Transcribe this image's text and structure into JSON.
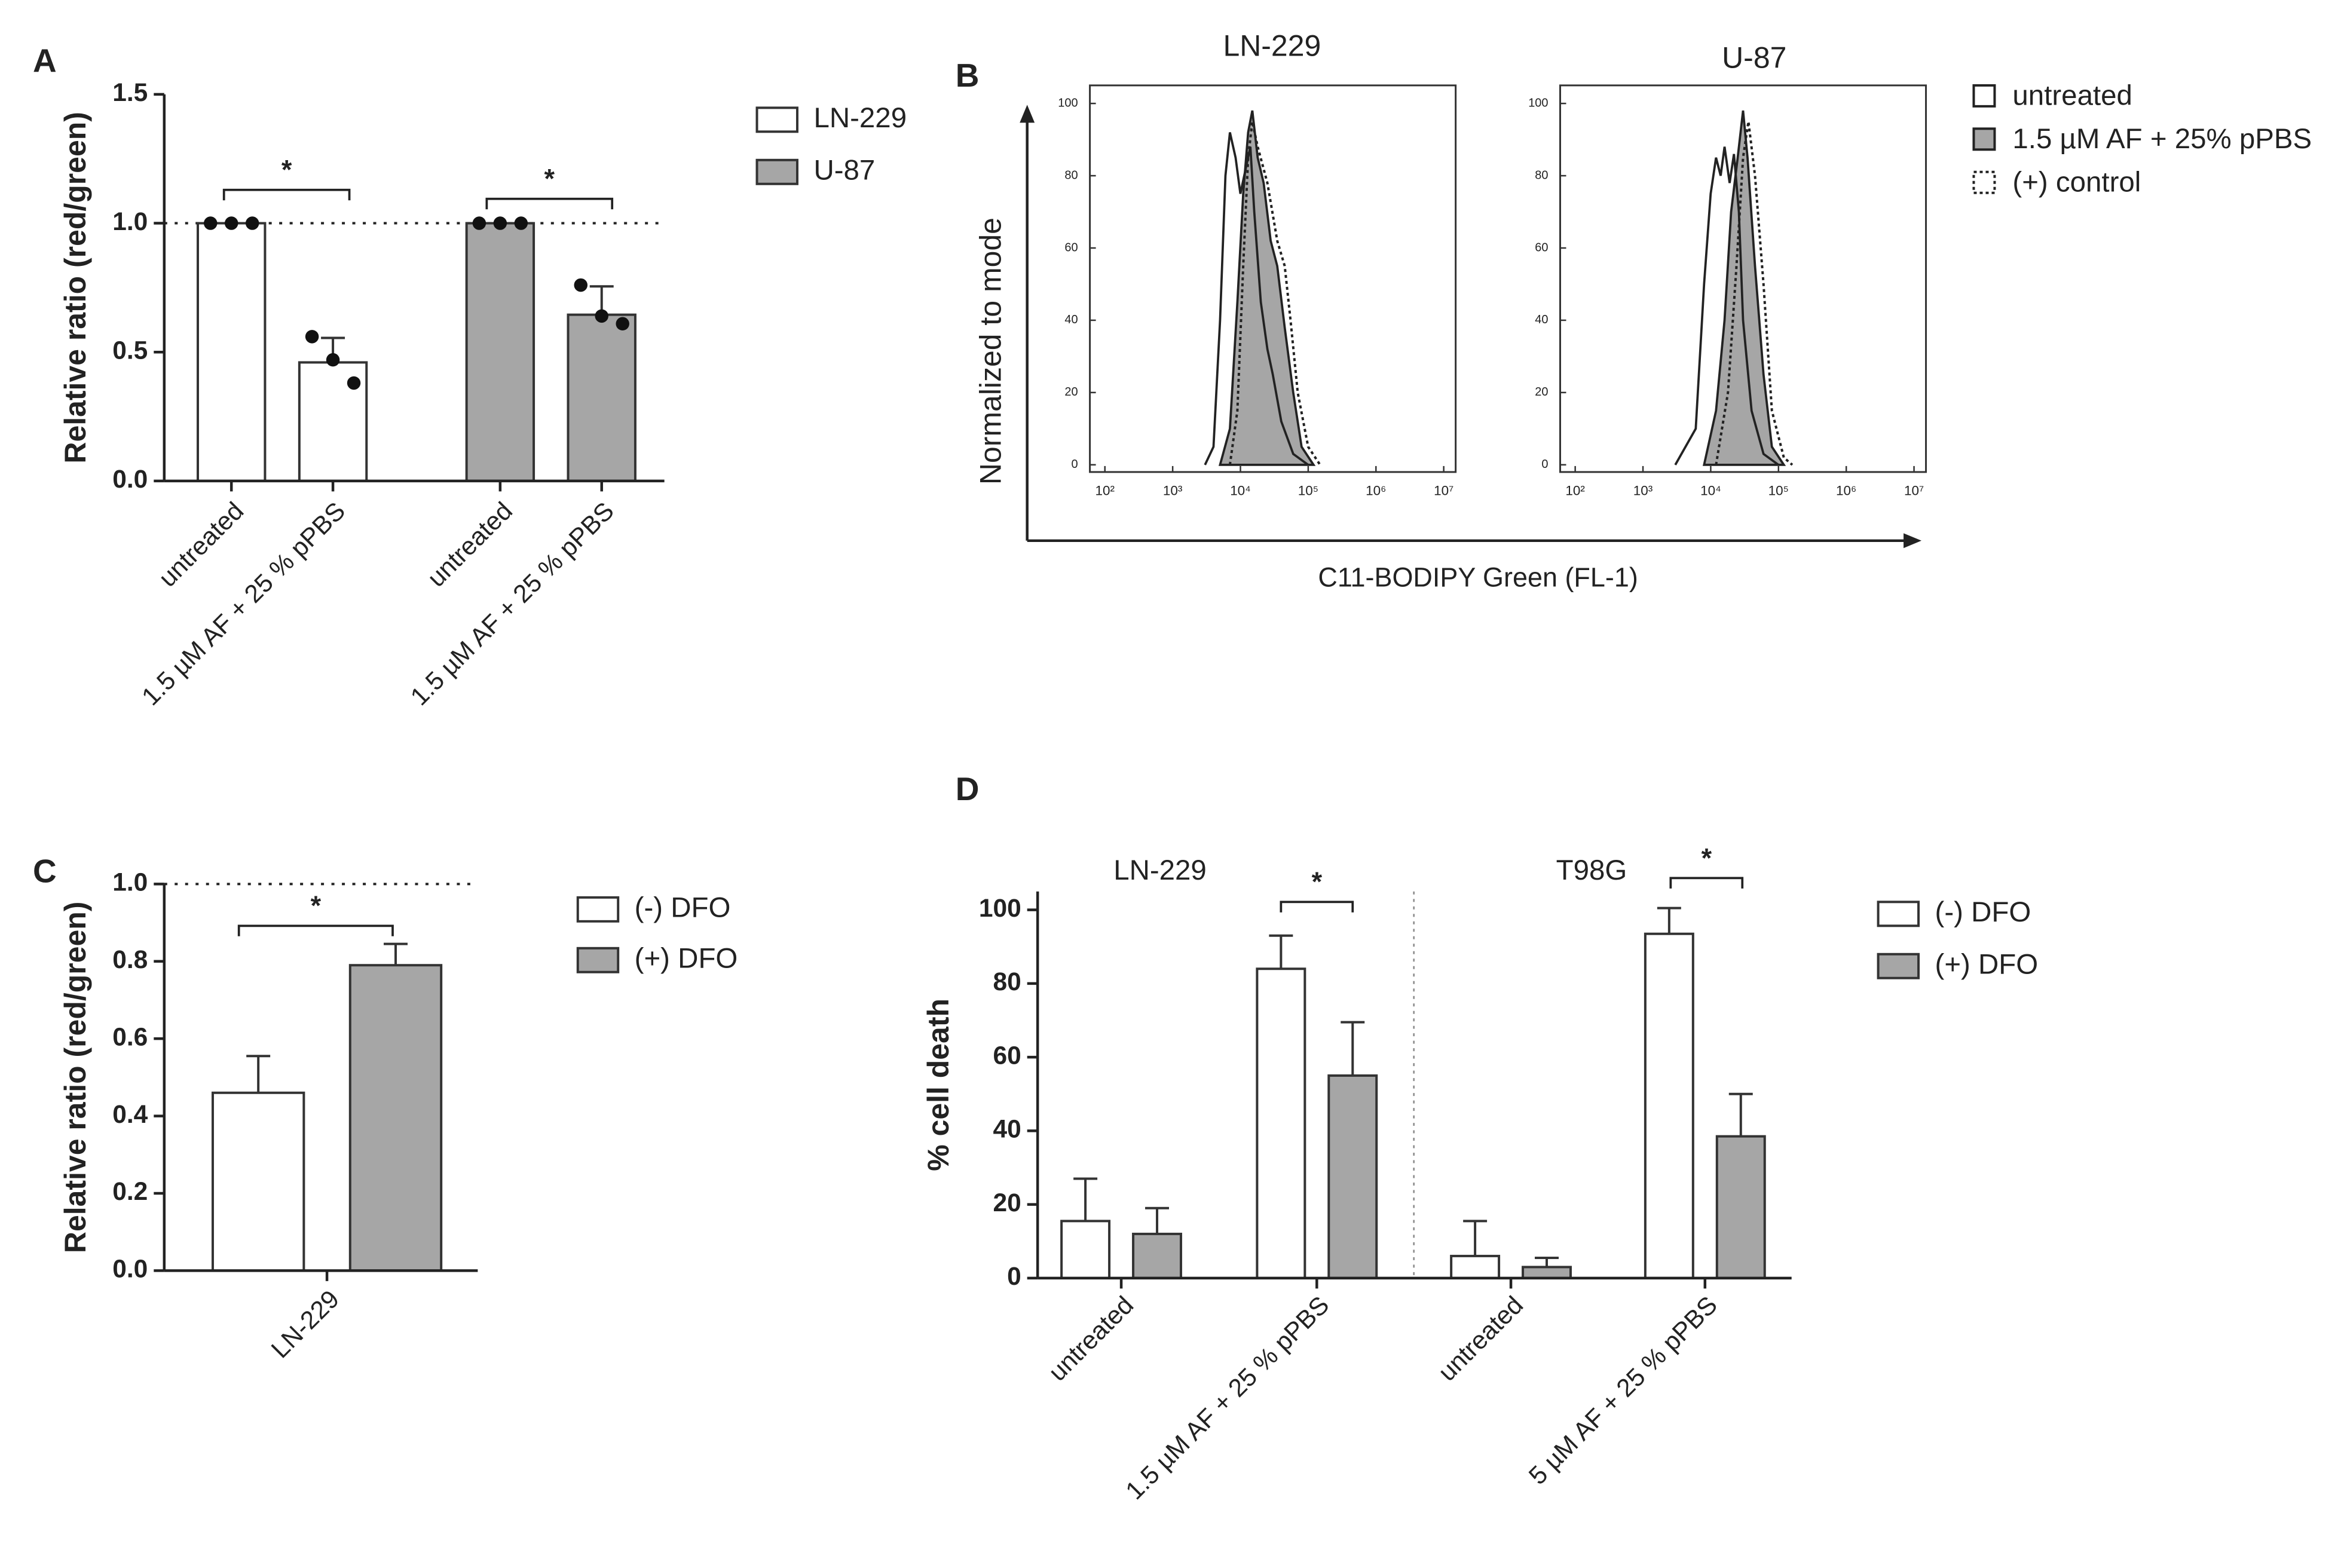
{
  "chart_data": [
    {
      "panel": "A",
      "type": "bar",
      "categories": [
        "untreated",
        "1.5 µM AF + 25 % pPBS",
        "untreated",
        "1.5 µM AF + 25 % pPBS"
      ],
      "series": [
        {
          "name": "LN-229",
          "color": "#ffffff",
          "values": [
            1,
            0.46,
            null,
            null
          ],
          "errors": [
            null,
            0.095,
            null,
            null
          ],
          "points": [
            [
              1,
              1,
              1
            ],
            [
              0.56,
              0.47,
              0.38
            ],
            null,
            null
          ]
        },
        {
          "name": "U-87",
          "color": "#a6a6a6",
          "values": [
            null,
            null,
            1,
            0.645
          ],
          "errors": [
            null,
            null,
            null,
            0.11
          ],
          "points": [
            null,
            null,
            [
              1,
              1,
              1
            ],
            [
              0.76,
              0.64,
              0.61
            ]
          ]
        }
      ],
      "ylabel": "Relative ratio (red/green)",
      "ylim": [
        0,
        1.5
      ],
      "yticks": [
        {
          "value": 0,
          "label": "0.0"
        },
        0.5,
        {
          "value": 1,
          "label": "1.0"
        },
        1.5
      ],
      "reference_line": 1,
      "significance": [
        "*",
        "*"
      ]
    },
    {
      "panel": "B",
      "type": "line",
      "ylabel": "Normalized to mode",
      "xlabel": "C11-BODIPY Green (FL-1)",
      "xscale": "log",
      "xlim": [
        60,
        15000000
      ],
      "xticks": [
        {
          "value": 100,
          "label": "10²"
        },
        {
          "value": 1000,
          "label": "10³"
        },
        {
          "value": 10000,
          "label": "10⁴"
        },
        {
          "value": 100000,
          "label": "10⁵"
        },
        {
          "value": 1000000,
          "label": "10⁶"
        },
        {
          "value": 10000000,
          "label": "10⁷"
        }
      ],
      "ylim": [
        -2,
        105
      ],
      "yticks": [
        0,
        20,
        40,
        60,
        80,
        100
      ],
      "series": [
        {
          "name": "untreated",
          "color": "#ffffff",
          "style": "solid"
        },
        {
          "name": "1.5 µM AF + 25% pPBS",
          "color": "#a6a6a6",
          "style": "filled"
        },
        {
          "name": "(+) control",
          "color": "#ffffff",
          "style": "dotted"
        }
      ],
      "panels": [
        {
          "title": "LN-229",
          "curves": [
            {
              "x": [
                3000,
                4000,
                5000,
                6000,
                7000,
                8500,
                10000,
                12000,
                14000,
                16000,
                20000,
                25000,
                30000,
                40000,
                60000,
                100000
              ],
              "values": [
                0,
                5,
                40,
                80,
                92,
                85,
                75,
                82,
                88,
                70,
                45,
                32,
                25,
                12,
                3,
                0
              ]
            },
            {
              "x": [
                5000,
                7000,
                9000,
                11000,
                13000,
                15000,
                18000,
                22000,
                28000,
                35000,
                45000,
                60000,
                80000,
                120000
              ],
              "values": [
                0,
                10,
                45,
                75,
                92,
                98,
                85,
                78,
                62,
                55,
                38,
                20,
                5,
                0
              ]
            },
            {
              "x": [
                7000,
                9000,
                11000,
                13000,
                15000,
                18000,
                25000,
                35000,
                45000,
                55000,
                70000,
                100000,
                150000
              ],
              "values": [
                0,
                15,
                55,
                85,
                95,
                88,
                78,
                62,
                55,
                40,
                20,
                5,
                0
              ]
            }
          ]
        },
        {
          "title": "U-87",
          "curves": [
            {
              "x": [
                3000,
                6000,
                8000,
                10000,
                12000,
                14000,
                16000,
                19000,
                22000,
                26000,
                30000,
                40000,
                60000,
                100000
              ],
              "values": [
                0,
                10,
                50,
                75,
                85,
                80,
                88,
                78,
                86,
                70,
                40,
                15,
                3,
                0
              ]
            },
            {
              "x": [
                8000,
                12000,
                16000,
                20000,
                25000,
                30000,
                35000,
                45000,
                60000,
                80000,
                120000
              ],
              "values": [
                0,
                15,
                40,
                70,
                85,
                98,
                85,
                55,
                25,
                5,
                0
              ]
            },
            {
              "x": [
                12000,
                18000,
                24000,
                30000,
                36000,
                45000,
                60000,
                80000,
                120000,
                160000
              ],
              "values": [
                0,
                20,
                55,
                85,
                95,
                80,
                50,
                15,
                2,
                0
              ]
            }
          ]
        }
      ]
    },
    {
      "panel": "C",
      "type": "bar",
      "categories": [
        "LN-229"
      ],
      "series": [
        {
          "name": "(-) DFO",
          "color": "#ffffff",
          "values": [
            0.46
          ],
          "errors": [
            0.095
          ]
        },
        {
          "name": "(+) DFO",
          "color": "#a6a6a6",
          "values": [
            0.79
          ],
          "errors": [
            0.055
          ]
        }
      ],
      "ylabel": "Relative ratio (red/green)",
      "ylim": [
        0,
        1
      ],
      "yticks": [
        {
          "value": 0,
          "label": "0.0"
        },
        0.2,
        0.4,
        0.6,
        0.8,
        {
          "value": 1,
          "label": "1.0"
        }
      ],
      "reference_line": 1,
      "significance": [
        "*"
      ]
    },
    {
      "panel": "D",
      "type": "bar",
      "groups": [
        "LN-229",
        "T98G"
      ],
      "categories": [
        "untreated",
        "1.5 µM AF + 25 % pPBS",
        "untreated",
        "5 µM AF + 25 % pPBS"
      ],
      "series": [
        {
          "name": "(-) DFO",
          "color": "#ffffff",
          "values": [
            15.5,
            84,
            6,
            93.5
          ],
          "errors": [
            11.5,
            9,
            9.5,
            7
          ]
        },
        {
          "name": "(+) DFO",
          "color": "#a6a6a6",
          "values": [
            12,
            55,
            3,
            38.5
          ],
          "errors": [
            7,
            14.5,
            2.5,
            11.5
          ]
        }
      ],
      "ylabel": "% cell death",
      "ylim": [
        0,
        105
      ],
      "yticks": [
        0,
        20,
        40,
        60,
        80,
        100
      ],
      "significance": [
        "*",
        "*"
      ]
    }
  ]
}
